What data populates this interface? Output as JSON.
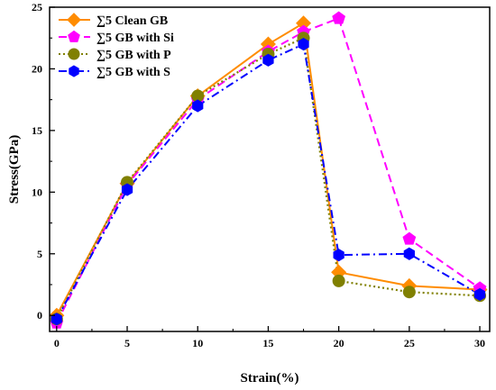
{
  "chart_data": {
    "type": "line",
    "title": "",
    "xlabel": "Strain(%)",
    "ylabel": "Stress(GPa)",
    "xlim": [
      -0.5,
      30.7
    ],
    "ylim": [
      -1.3,
      25
    ],
    "xticks": [
      0,
      5,
      10,
      15,
      20,
      25,
      30
    ],
    "yticks": [
      0,
      5,
      10,
      15,
      20,
      25
    ],
    "grid": false,
    "legend_position": "top-left",
    "series": [
      {
        "name": "∑5 Clean GB",
        "color": "#FF8C00",
        "marker": "diamond",
        "line_style": "solid",
        "x": [
          0,
          5,
          10,
          15,
          17.5,
          20,
          25,
          30
        ],
        "y": [
          0,
          10.7,
          17.8,
          22.0,
          23.7,
          3.5,
          2.4,
          2.1
        ]
      },
      {
        "name": "∑5 GB with Si",
        "color": "#FF00FF",
        "marker": "pentagon",
        "line_style": "dashed",
        "x": [
          0,
          5,
          10,
          15,
          17.5,
          20,
          25,
          30
        ],
        "y": [
          -0.6,
          10.6,
          17.5,
          21.4,
          23.0,
          24.1,
          6.2,
          2.2
        ]
      },
      {
        "name": "∑5 GB with P",
        "color": "#808000",
        "marker": "circle",
        "line_style": "dotted",
        "x": [
          0,
          5,
          10,
          15,
          17.5,
          20,
          25,
          30
        ],
        "y": [
          -0.3,
          10.8,
          17.8,
          21.2,
          22.5,
          2.8,
          1.9,
          1.6
        ]
      },
      {
        "name": "∑5 GB with S",
        "color": "#0000FF",
        "marker": "hexagon",
        "line_style": "dashdot",
        "x": [
          0,
          5,
          10,
          15,
          17.5,
          20,
          25,
          30
        ],
        "y": [
          -0.3,
          10.2,
          17.0,
          20.7,
          22.0,
          4.9,
          5.0,
          1.7
        ]
      }
    ]
  }
}
